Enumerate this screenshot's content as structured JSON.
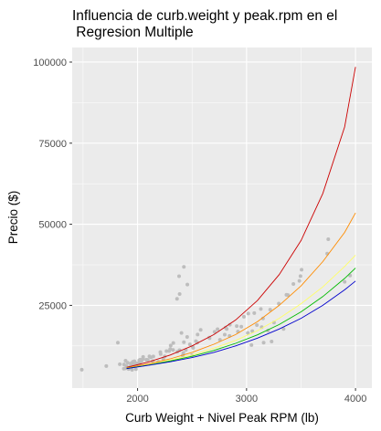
{
  "chart_data": {
    "type": "scatter",
    "title_lines": [
      "Influencia de curb.weight y peak.rpm en el",
      " Regresion Multiple"
    ],
    "xlabel": "Curb Weight + Nivel Peak RPM (lb)",
    "ylabel": "Precio ($)",
    "xlim": [
      1400,
      4150
    ],
    "ylim": [
      -500,
      104500
    ],
    "x_ticks": [
      2000,
      3000,
      4000
    ],
    "x_tick_labels": [
      "2000",
      "3000",
      "4000"
    ],
    "y_ticks": [
      25000,
      50000,
      75000,
      100000
    ],
    "y_tick_labels": [
      "25000",
      "50000",
      "75000",
      "100000"
    ],
    "grid": true,
    "panel_background": "#ebebeb",
    "grid_color": "#ffffff",
    "point_color": "#bdbdbd",
    "points": [
      [
        1488,
        5151
      ],
      [
        1713,
        6295
      ],
      [
        1819,
        13495
      ],
      [
        1837,
        6855
      ],
      [
        1874,
        5499
      ],
      [
        1876,
        6795
      ],
      [
        1889,
        5572
      ],
      [
        1890,
        7957
      ],
      [
        1900,
        6229
      ],
      [
        1909,
        7295
      ],
      [
        1918,
        5389
      ],
      [
        1938,
        6488
      ],
      [
        1940,
        7099
      ],
      [
        1944,
        6575
      ],
      [
        1945,
        6377
      ],
      [
        1950,
        5118
      ],
      [
        1951,
        6692
      ],
      [
        1956,
        7609
      ],
      [
        1967,
        6649
      ],
      [
        1971,
        7775
      ],
      [
        1985,
        5348
      ],
      [
        1989,
        7126
      ],
      [
        2004,
        6938
      ],
      [
        2008,
        6669
      ],
      [
        2010,
        7198
      ],
      [
        2015,
        8058
      ],
      [
        2017,
        6918
      ],
      [
        2024,
        8249
      ],
      [
        2028,
        7738
      ],
      [
        2037,
        7898
      ],
      [
        2050,
        8499
      ],
      [
        2051,
        9095
      ],
      [
        2081,
        8238
      ],
      [
        2094,
        8189
      ],
      [
        2109,
        9279
      ],
      [
        2122,
        8948
      ],
      [
        2140,
        7799
      ],
      [
        2145,
        9258
      ],
      [
        2190,
        7603
      ],
      [
        2209,
        10595
      ],
      [
        2212,
        9995
      ],
      [
        2236,
        8495
      ],
      [
        2250,
        9298
      ],
      [
        2265,
        10898
      ],
      [
        2290,
        10945
      ],
      [
        2300,
        11549
      ],
      [
        2304,
        12629
      ],
      [
        2326,
        11248
      ],
      [
        2328,
        13415
      ],
      [
        2365,
        10698
      ],
      [
        2385,
        11199
      ],
      [
        2403,
        16500
      ],
      [
        2414,
        9549
      ],
      [
        2420,
        10345
      ],
      [
        2425,
        13645
      ],
      [
        2443,
        11259
      ],
      [
        2455,
        15250
      ],
      [
        2480,
        12964
      ],
      [
        2500,
        9639
      ],
      [
        2507,
        12170
      ],
      [
        2510,
        11900
      ],
      [
        2535,
        13950
      ],
      [
        2548,
        13495
      ],
      [
        2551,
        15998
      ],
      [
        2579,
        17450
      ],
      [
        2658,
        15040
      ],
      [
        2661,
        14869
      ],
      [
        2707,
        16845
      ],
      [
        2734,
        17669
      ],
      [
        2756,
        14399
      ],
      [
        2800,
        15985
      ],
      [
        2808,
        18150
      ],
      [
        2818,
        17710
      ],
      [
        2844,
        15580
      ],
      [
        2847,
        19045
      ],
      [
        2910,
        18620
      ],
      [
        2921,
        16925
      ],
      [
        2952,
        18420
      ],
      [
        2976,
        21485
      ],
      [
        3012,
        16503
      ],
      [
        3016,
        22470
      ],
      [
        3045,
        12764
      ],
      [
        3053,
        17075
      ],
      [
        3071,
        22625
      ],
      [
        3095,
        18920
      ],
      [
        3131,
        23875
      ],
      [
        3139,
        18280
      ],
      [
        3151,
        20970
      ],
      [
        3157,
        13499
      ],
      [
        3197,
        17199
      ],
      [
        3217,
        23670
      ],
      [
        3230,
        13860
      ],
      [
        3252,
        19699
      ],
      [
        3296,
        25552
      ],
      [
        3340,
        17710
      ],
      [
        3366,
        28248
      ],
      [
        3380,
        28176
      ],
      [
        3430,
        31600
      ],
      [
        3485,
        32528
      ],
      [
        3495,
        34028
      ],
      [
        3505,
        36000
      ],
      [
        3740,
        40960
      ],
      [
        3750,
        45400
      ],
      [
        3900,
        32250
      ],
      [
        3950,
        34184
      ],
      [
        2362,
        27000
      ],
      [
        2386,
        28500
      ],
      [
        2381,
        34000
      ],
      [
        2457,
        31400
      ],
      [
        2425,
        36880
      ]
    ],
    "series": [
      {
        "color": "#cc0000",
        "values": [
          [
            1900,
            5900
          ],
          [
            2100,
            7550
          ],
          [
            2300,
            9700
          ],
          [
            2500,
            12500
          ],
          [
            2700,
            16000
          ],
          [
            2900,
            20500
          ],
          [
            3100,
            26500
          ],
          [
            3300,
            34500
          ],
          [
            3500,
            45000
          ],
          [
            3700,
            59500
          ],
          [
            3900,
            80000
          ],
          [
            4000,
            98500
          ]
        ]
      },
      {
        "color": "#ff8c00",
        "values": [
          [
            1900,
            5700
          ],
          [
            2100,
            7000
          ],
          [
            2300,
            8500
          ],
          [
            2500,
            10500
          ],
          [
            2700,
            13000
          ],
          [
            2900,
            16000
          ],
          [
            3100,
            20000
          ],
          [
            3300,
            25000
          ],
          [
            3500,
            31000
          ],
          [
            3700,
            38500
          ],
          [
            3900,
            47500
          ],
          [
            4000,
            53500
          ]
        ]
      },
      {
        "color": "#ffff66",
        "values": [
          [
            1900,
            5600
          ],
          [
            2100,
            6700
          ],
          [
            2300,
            8100
          ],
          [
            2500,
            9700
          ],
          [
            2700,
            11800
          ],
          [
            2900,
            14200
          ],
          [
            3100,
            17200
          ],
          [
            3300,
            21000
          ],
          [
            3500,
            25500
          ],
          [
            3700,
            30700
          ],
          [
            3900,
            37000
          ],
          [
            4000,
            40500
          ]
        ]
      },
      {
        "color": "#00bb00",
        "values": [
          [
            1900,
            5550
          ],
          [
            2100,
            6600
          ],
          [
            2300,
            7850
          ],
          [
            2500,
            9300
          ],
          [
            2700,
            11100
          ],
          [
            2900,
            13300
          ],
          [
            3100,
            15900
          ],
          [
            3300,
            19100
          ],
          [
            3500,
            23000
          ],
          [
            3700,
            27700
          ],
          [
            3900,
            33300
          ],
          [
            4000,
            36500
          ]
        ]
      },
      {
        "color": "#0000cc",
        "values": [
          [
            1900,
            5500
          ],
          [
            2100,
            6500
          ],
          [
            2300,
            7600
          ],
          [
            2500,
            8900
          ],
          [
            2700,
            10500
          ],
          [
            2900,
            12500
          ],
          [
            3100,
            14900
          ],
          [
            3300,
            17700
          ],
          [
            3500,
            21000
          ],
          [
            3700,
            25000
          ],
          [
            3900,
            29800
          ],
          [
            4000,
            32500
          ]
        ]
      }
    ]
  }
}
